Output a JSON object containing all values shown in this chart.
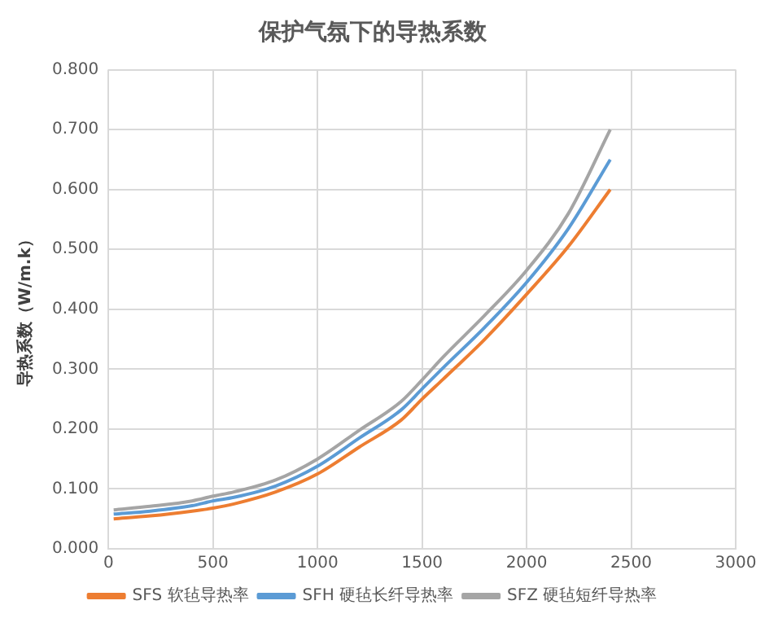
{
  "chart_data": {
    "type": "line",
    "title": "保护气氛下的导热系数",
    "ylabel": "导热系数（W/m.k）",
    "x": [
      25,
      200,
      400,
      500,
      600,
      800,
      1000,
      1200,
      1400,
      1500,
      1600,
      1800,
      2000,
      2200,
      2400
    ],
    "series": [
      {
        "name": "SFS 软毡导热率",
        "color": "#ed7d31",
        "values": [
          0.05,
          0.055,
          0.063,
          0.068,
          0.075,
          0.095,
          0.125,
          0.17,
          0.215,
          0.25,
          0.283,
          0.35,
          0.425,
          0.505,
          0.6
        ]
      },
      {
        "name": "SFH 硬毡长纤导热率",
        "color": "#5b9bd5",
        "values": [
          0.058,
          0.063,
          0.072,
          0.08,
          0.086,
          0.105,
          0.138,
          0.185,
          0.232,
          0.267,
          0.302,
          0.37,
          0.445,
          0.535,
          0.65
        ]
      },
      {
        "name": "SFZ 硬毡短纤导热率",
        "color": "#a5a5a5",
        "values": [
          0.065,
          0.071,
          0.08,
          0.088,
          0.095,
          0.115,
          0.15,
          0.198,
          0.246,
          0.282,
          0.32,
          0.39,
          0.465,
          0.56,
          0.7
        ]
      }
    ],
    "xlim": [
      0,
      3000
    ],
    "xticks": [
      0,
      500,
      1000,
      1500,
      2000,
      2500,
      3000
    ],
    "ylim": [
      0,
      0.8
    ],
    "yticks": [
      {
        "value": 0,
        "label": "0.000"
      },
      {
        "value": 0.1,
        "label": "0.100"
      },
      {
        "value": 0.2,
        "label": "0.200"
      },
      {
        "value": 0.3,
        "label": "0.300"
      },
      {
        "value": 0.4,
        "label": "0.400"
      },
      {
        "value": 0.5,
        "label": "0.500"
      },
      {
        "value": 0.6,
        "label": "0.600"
      },
      {
        "value": 0.7,
        "label": "0.700"
      },
      {
        "value": 0.8,
        "label": "0.800"
      }
    ],
    "grid": true,
    "legend": "bottom",
    "marker": "none",
    "line_style": "solid"
  }
}
